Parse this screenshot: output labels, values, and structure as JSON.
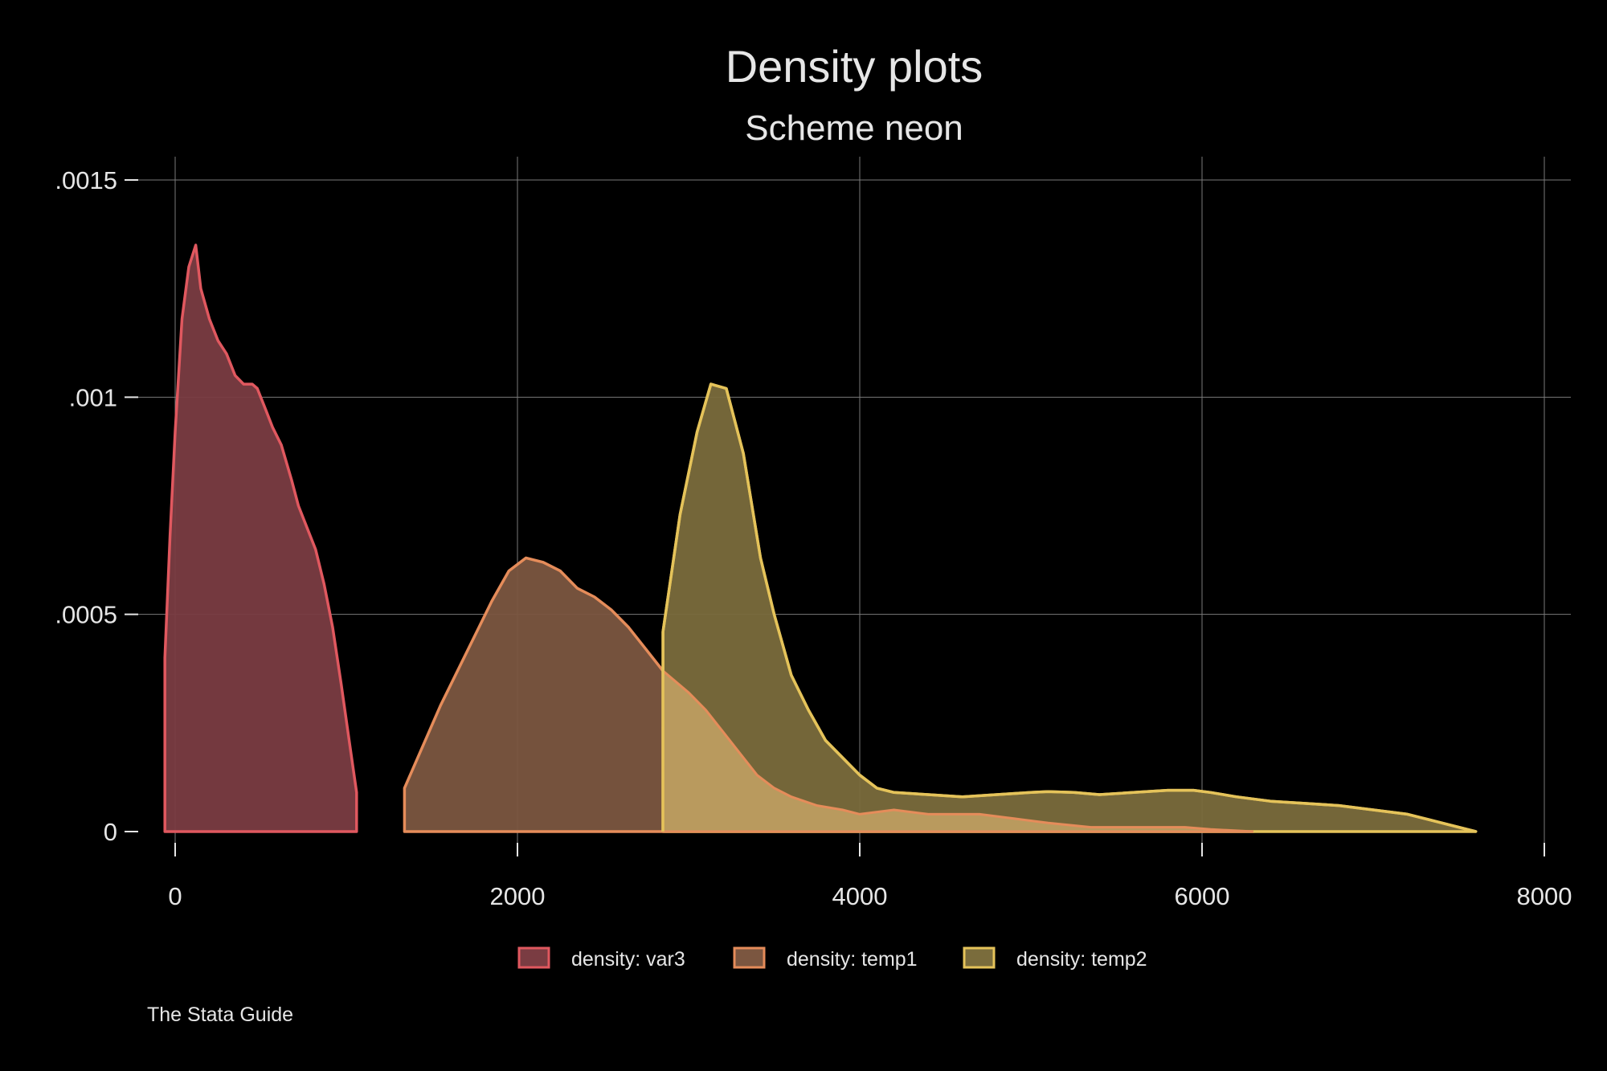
{
  "chart_data": {
    "type": "area",
    "title": "Density plots",
    "subtitle": "Scheme neon",
    "note": "The Stata Guide",
    "xlabel": "",
    "ylabel": "",
    "xlim": [
      0,
      8000
    ],
    "ylim": [
      0,
      0.0015
    ],
    "x_ticks": [
      {
        "value": 0,
        "label": "0"
      },
      {
        "value": 2000,
        "label": "2000"
      },
      {
        "value": 4000,
        "label": "4000"
      },
      {
        "value": 6000,
        "label": "6000"
      },
      {
        "value": 8000,
        "label": "8000"
      }
    ],
    "y_ticks": [
      {
        "value": 0,
        "label": "0"
      },
      {
        "value": 0.0005,
        "label": ".0005"
      },
      {
        "value": 0.001,
        "label": ".001"
      },
      {
        "value": 0.0015,
        "label": ".0015"
      }
    ],
    "grid": true,
    "legend_position": "bottom",
    "series": [
      {
        "name": "density: var3",
        "color": "#e0585f",
        "fill": "#7a3c42",
        "points": [
          [
            -60,
            0.0004
          ],
          [
            -30,
            0.00068
          ],
          [
            0,
            0.00092
          ],
          [
            40,
            0.00118
          ],
          [
            80,
            0.0013
          ],
          [
            120,
            0.00135
          ],
          [
            150,
            0.00125
          ],
          [
            200,
            0.00118
          ],
          [
            250,
            0.00113
          ],
          [
            300,
            0.0011
          ],
          [
            350,
            0.00105
          ],
          [
            400,
            0.00103
          ],
          [
            450,
            0.00103
          ],
          [
            480,
            0.00102
          ],
          [
            520,
            0.00098
          ],
          [
            570,
            0.00093
          ],
          [
            620,
            0.00089
          ],
          [
            680,
            0.00081
          ],
          [
            720,
            0.00075
          ],
          [
            770,
            0.0007
          ],
          [
            820,
            0.00065
          ],
          [
            870,
            0.00057
          ],
          [
            920,
            0.00047
          ],
          [
            970,
            0.00034
          ],
          [
            1020,
            0.0002
          ],
          [
            1060,
            9e-05
          ]
        ]
      },
      {
        "name": "density: temp1",
        "color": "#e58c5a",
        "fill": "#7b5640",
        "points": [
          [
            1340,
            0.0001
          ],
          [
            1550,
            0.00029
          ],
          [
            1850,
            0.00053
          ],
          [
            1950,
            0.0006
          ],
          [
            2050,
            0.00063
          ],
          [
            2150,
            0.00062
          ],
          [
            2250,
            0.0006
          ],
          [
            2350,
            0.00056
          ],
          [
            2450,
            0.00054
          ],
          [
            2550,
            0.00051
          ],
          [
            2650,
            0.00047
          ],
          [
            2750,
            0.00042
          ],
          [
            2850,
            0.00037
          ],
          [
            3000,
            0.00032
          ],
          [
            3100,
            0.00028
          ],
          [
            3200,
            0.00023
          ],
          [
            3300,
            0.00018
          ],
          [
            3400,
            0.00013
          ],
          [
            3500,
            0.0001
          ],
          [
            3600,
            8e-05
          ],
          [
            3750,
            6e-05
          ],
          [
            3900,
            5e-05
          ],
          [
            4000,
            4e-05
          ],
          [
            4200,
            5e-05
          ],
          [
            4400,
            4e-05
          ],
          [
            4500,
            4e-05
          ],
          [
            4700,
            4e-05
          ],
          [
            4900,
            3e-05
          ],
          [
            5100,
            2e-05
          ],
          [
            5350,
            1e-05
          ],
          [
            5600,
            1e-05
          ],
          [
            5900,
            1e-05
          ],
          [
            6050,
            5e-06
          ],
          [
            6300,
            0.0
          ]
        ]
      },
      {
        "name": "density: temp2",
        "color": "#e5c35a",
        "fill": "#7a6c3c",
        "points": [
          [
            2850,
            0.00046
          ],
          [
            2950,
            0.00073
          ],
          [
            3050,
            0.00092
          ],
          [
            3130,
            0.00103
          ],
          [
            3220,
            0.00102
          ],
          [
            3320,
            0.00087
          ],
          [
            3420,
            0.00063
          ],
          [
            3500,
            0.0005
          ],
          [
            3600,
            0.00036
          ],
          [
            3700,
            0.00028
          ],
          [
            3800,
            0.00021
          ],
          [
            3900,
            0.00017
          ],
          [
            4000,
            0.00013
          ],
          [
            4100,
            0.0001
          ],
          [
            4200,
            9e-05
          ],
          [
            4400,
            8.5e-05
          ],
          [
            4600,
            8e-05
          ],
          [
            4800,
            8.5e-05
          ],
          [
            5000,
            9e-05
          ],
          [
            5100,
            9.2e-05
          ],
          [
            5250,
            9e-05
          ],
          [
            5400,
            8.5e-05
          ],
          [
            5600,
            9e-05
          ],
          [
            5800,
            9.5e-05
          ],
          [
            5950,
            9.5e-05
          ],
          [
            6050,
            9e-05
          ],
          [
            6200,
            8e-05
          ],
          [
            6400,
            7e-05
          ],
          [
            6600,
            6.5e-05
          ],
          [
            6800,
            6e-05
          ],
          [
            7000,
            5e-05
          ],
          [
            7200,
            4e-05
          ],
          [
            7400,
            2e-05
          ],
          [
            7600,
            0.0
          ]
        ]
      }
    ]
  }
}
